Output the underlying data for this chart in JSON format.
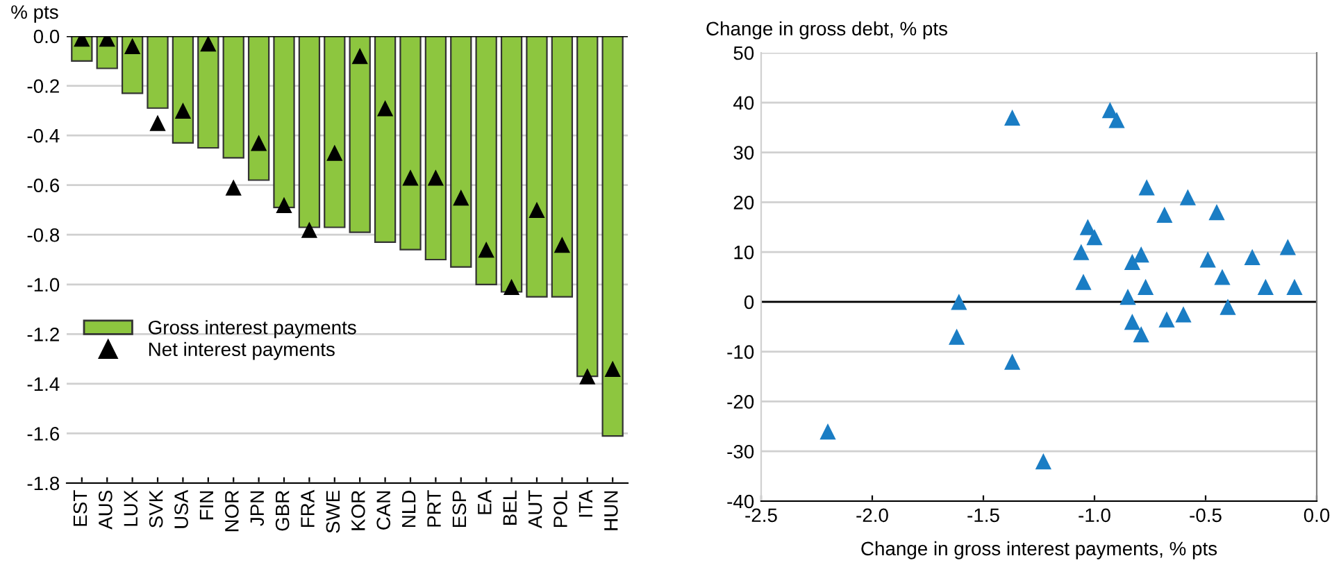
{
  "chart_data": [
    {
      "type": "bar",
      "ylabel": "% pts",
      "categories": [
        "EST",
        "AUS",
        "LUX",
        "SVK",
        "USA",
        "FIN",
        "NOR",
        "JPN",
        "GBR",
        "FRA",
        "SWE",
        "KOR",
        "CAN",
        "NLD",
        "PRT",
        "ESP",
        "EA",
        "BEL",
        "AUT",
        "POL",
        "ITA",
        "HUN"
      ],
      "series": [
        {
          "name": "Gross interest payments",
          "type": "bar",
          "color": "#8dc63f",
          "values": [
            -0.1,
            -0.13,
            -0.23,
            -0.29,
            -0.43,
            -0.45,
            -0.49,
            -0.58,
            -0.69,
            -0.77,
            -0.77,
            -0.79,
            -0.83,
            -0.86,
            -0.9,
            -0.93,
            -1.0,
            -1.03,
            -1.05,
            -1.05,
            -1.37,
            -1.61
          ]
        },
        {
          "name": "Net interest payments",
          "type": "scatter",
          "marker": "triangle",
          "color": "#000000",
          "values": [
            -0.01,
            -0.01,
            -0.04,
            -0.35,
            -0.3,
            -0.03,
            -0.61,
            -0.43,
            -0.68,
            -0.78,
            -0.47,
            -0.08,
            -0.29,
            -0.57,
            -0.57,
            -0.65,
            -0.86,
            -1.01,
            -0.7,
            -0.84,
            -1.37,
            -1.34
          ]
        }
      ],
      "ylim": [
        -1.8,
        0
      ],
      "yticks": [
        {
          "value": -1.8,
          "label": "-1.8"
        },
        {
          "value": -1.6,
          "label": "-1.6"
        },
        {
          "value": -1.4,
          "label": "-1.4"
        },
        {
          "value": -1.2,
          "label": "-1.2"
        },
        {
          "value": -1.0,
          "label": "-1.0"
        },
        {
          "value": -0.8,
          "label": "-0.8"
        },
        {
          "value": -0.6,
          "label": "-0.6"
        },
        {
          "value": -0.4,
          "label": "-0.4"
        },
        {
          "value": -0.2,
          "label": "-0.2"
        },
        {
          "value": 0,
          "label": "0.0"
        }
      ],
      "ref_lines": [
        {
          "axis": "y",
          "value": 0,
          "color": "#000000"
        }
      ],
      "grid": "y",
      "legend": "left"
    },
    {
      "type": "scatter",
      "ylabel": "Change in gross debt, % pts",
      "xlabel": "Change in gross interest payments, % pts",
      "marker": "triangle",
      "x": [
        -2.2,
        -1.61,
        -1.62,
        -1.37,
        -1.37,
        -1.23,
        -1.06,
        -1.05,
        -1.03,
        -1.0,
        -0.93,
        -0.9,
        -0.85,
        -0.83,
        -0.83,
        -0.79,
        -0.79,
        -0.765,
        -0.77,
        -0.685,
        -0.675,
        -0.58,
        -0.6,
        -0.49,
        -0.45,
        -0.425,
        -0.4,
        -0.29,
        -0.23,
        -0.13,
        -0.1
      ],
      "series": [
        {
          "color": "#1a7dc4",
          "values": [
            -26,
            0,
            -7,
            37,
            -12,
            -32,
            10,
            4,
            15,
            13,
            38.5,
            36.5,
            1,
            8,
            -4,
            9.5,
            -6.5,
            23,
            3,
            17.5,
            -3.5,
            21,
            -2.5,
            8.5,
            18,
            5,
            -1,
            9,
            3,
            11,
            3
          ]
        }
      ],
      "xlim": [
        -2.5,
        0
      ],
      "xticks": [
        {
          "value": -2.5,
          "label": "-2.5"
        },
        {
          "value": -2.0,
          "label": "-2.0"
        },
        {
          "value": -1.5,
          "label": "-1.5"
        },
        {
          "value": -1.0,
          "label": "-1.0"
        },
        {
          "value": -0.5,
          "label": "-0.5"
        },
        {
          "value": 0,
          "label": "0.0"
        }
      ],
      "ylim": [
        -40,
        50
      ],
      "yticks": [
        -40,
        -30,
        -20,
        -10,
        0,
        10,
        20,
        30,
        40,
        50
      ],
      "ref_lines": [
        {
          "axis": "y",
          "value": 0,
          "color": "#000000"
        }
      ],
      "grid": "y"
    }
  ]
}
